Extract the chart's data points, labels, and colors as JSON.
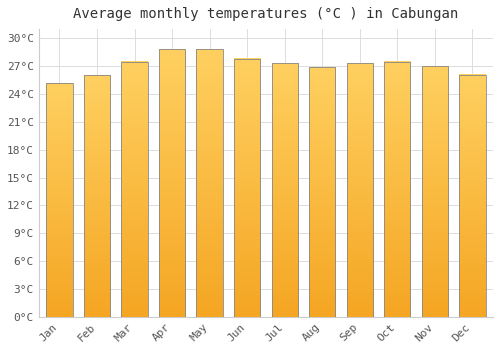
{
  "title": "Average monthly temperatures (°C ) in Cabungan",
  "months": [
    "Jan",
    "Feb",
    "Mar",
    "Apr",
    "May",
    "Jun",
    "Jul",
    "Aug",
    "Sep",
    "Oct",
    "Nov",
    "Dec"
  ],
  "values": [
    25.2,
    26.0,
    27.5,
    28.8,
    28.8,
    27.8,
    27.3,
    26.9,
    27.3,
    27.5,
    27.0,
    26.1
  ],
  "ylim": [
    0,
    31
  ],
  "yticks": [
    0,
    3,
    6,
    9,
    12,
    15,
    18,
    21,
    24,
    27,
    30
  ],
  "ytick_labels": [
    "0°C",
    "3°C",
    "6°C",
    "9°C",
    "12°C",
    "15°C",
    "18°C",
    "21°C",
    "24°C",
    "27°C",
    "30°C"
  ],
  "background_color": "#FFFFFF",
  "plot_bg_color": "#FFFFFF",
  "grid_color": "#DDDDDD",
  "title_fontsize": 10,
  "tick_fontsize": 8,
  "bar_left_color": "#F5A623",
  "bar_right_color": "#FFD060",
  "bar_edge_color": "#888888",
  "bar_width": 0.7
}
